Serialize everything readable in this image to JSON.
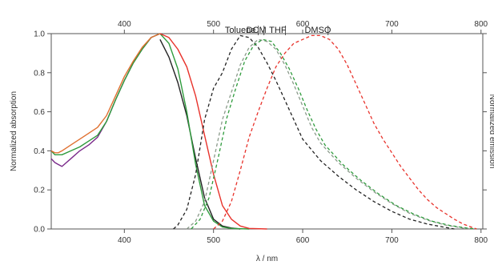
{
  "chart_data": {
    "type": "line",
    "xlabel": "λ / nm",
    "ylabel": "Normalized absorption",
    "y2label": "Normalized emission",
    "xlim": [
      318,
      802
    ],
    "ylim": [
      0,
      1.0
    ],
    "xticks": [
      "400",
      "500",
      "600",
      "700",
      "800"
    ],
    "xtick_values": [
      400,
      500,
      600,
      700,
      800
    ],
    "top_xticks": [
      "400",
      "500",
      "600",
      "700",
      "800"
    ],
    "yticks": [
      "0.0",
      "0.2",
      "0.4",
      "0.6",
      "0.8",
      "1.0"
    ],
    "ytick_values": [
      0,
      0.2,
      0.4,
      0.6,
      0.8,
      1.0
    ],
    "annotations": [
      {
        "text": "Toluene",
        "x": 530
      },
      {
        "text": "DCM",
        "x": 548
      },
      {
        "text": "THF",
        "x": 572
      },
      {
        "text": "DMSO",
        "x": 617
      }
    ],
    "colors": {
      "black": "#222222",
      "green": "#2e9b3c",
      "gray": "#8a9a8a",
      "red": "#e8322b",
      "purple": "#7a2a8a",
      "orange": "#e07030"
    },
    "series": [
      {
        "kind": "absorption",
        "color": "purple",
        "style": "solid",
        "x": [
          318,
          322,
          326,
          330,
          340,
          350,
          360,
          370,
          380,
          390,
          400,
          410,
          420,
          430,
          440
        ],
        "y": [
          0.36,
          0.34,
          0.33,
          0.32,
          0.36,
          0.4,
          0.43,
          0.47,
          0.55,
          0.66,
          0.76,
          0.85,
          0.92,
          0.98,
          1.0
        ]
      },
      {
        "kind": "absorption",
        "color": "black",
        "style": "solid",
        "x": [
          440,
          450,
          460,
          470,
          480,
          490,
          500,
          510,
          520,
          530
        ],
        "y": [
          0.97,
          0.88,
          0.75,
          0.58,
          0.36,
          0.16,
          0.05,
          0.015,
          0.005,
          0.0
        ]
      },
      {
        "kind": "absorption",
        "color": "green",
        "style": "solid",
        "x": [
          318,
          322,
          326,
          330,
          340,
          350,
          360,
          370,
          380,
          390,
          400,
          410,
          420,
          430,
          440,
          450,
          460,
          470,
          480,
          490,
          500,
          510,
          520,
          540
        ],
        "y": [
          0.4,
          0.38,
          0.38,
          0.38,
          0.4,
          0.42,
          0.45,
          0.48,
          0.55,
          0.66,
          0.76,
          0.85,
          0.92,
          0.98,
          1.0,
          0.95,
          0.82,
          0.6,
          0.33,
          0.12,
          0.04,
          0.01,
          0.003,
          0.0
        ]
      },
      {
        "kind": "absorption",
        "color": "orange",
        "style": "solid",
        "x": [
          318,
          322,
          326,
          330,
          340,
          350,
          360,
          370,
          380,
          390,
          400,
          410,
          420,
          430,
          440
        ],
        "y": [
          0.4,
          0.39,
          0.39,
          0.4,
          0.43,
          0.46,
          0.49,
          0.52,
          0.58,
          0.68,
          0.78,
          0.86,
          0.93,
          0.98,
          1.0
        ]
      },
      {
        "kind": "absorption",
        "color": "red",
        "style": "solid",
        "x": [
          440,
          450,
          460,
          470,
          480,
          490,
          500,
          510,
          520,
          530,
          540,
          560
        ],
        "y": [
          1.0,
          0.98,
          0.92,
          0.83,
          0.68,
          0.48,
          0.28,
          0.12,
          0.05,
          0.015,
          0.003,
          0.0
        ]
      },
      {
        "kind": "emission",
        "color": "black",
        "style": "dashed",
        "name": "Toluene",
        "x": [
          455,
          460,
          470,
          480,
          490,
          500,
          510,
          520,
          530,
          540,
          550,
          560,
          570,
          580,
          590,
          600,
          620,
          640,
          660,
          680,
          700,
          720,
          740,
          760,
          770
        ],
        "y": [
          0.0,
          0.02,
          0.1,
          0.28,
          0.56,
          0.72,
          0.8,
          0.92,
          0.99,
          0.98,
          0.93,
          0.85,
          0.76,
          0.66,
          0.56,
          0.46,
          0.35,
          0.27,
          0.2,
          0.14,
          0.09,
          0.05,
          0.025,
          0.008,
          0.0
        ]
      },
      {
        "kind": "emission",
        "color": "gray",
        "style": "dashed",
        "name": "DCM",
        "x": [
          470,
          480,
          490,
          500,
          510,
          520,
          530,
          540,
          550,
          560,
          570,
          580,
          590,
          600,
          610,
          620,
          640,
          660,
          680,
          700,
          720,
          740,
          760,
          780,
          790
        ],
        "y": [
          0.0,
          0.04,
          0.14,
          0.35,
          0.56,
          0.7,
          0.84,
          0.93,
          0.97,
          0.96,
          0.92,
          0.84,
          0.74,
          0.63,
          0.52,
          0.44,
          0.34,
          0.26,
          0.19,
          0.13,
          0.08,
          0.045,
          0.02,
          0.005,
          0.0
        ]
      },
      {
        "kind": "emission",
        "color": "green",
        "style": "dashed",
        "name": "THF",
        "x": [
          475,
          485,
          495,
          505,
          515,
          525,
          535,
          545,
          555,
          565,
          575,
          585,
          595,
          605,
          615,
          625,
          645,
          665,
          685,
          705,
          725,
          745,
          765,
          785,
          795
        ],
        "y": [
          0.0,
          0.05,
          0.16,
          0.36,
          0.57,
          0.72,
          0.86,
          0.94,
          0.97,
          0.96,
          0.9,
          0.82,
          0.72,
          0.61,
          0.51,
          0.43,
          0.33,
          0.25,
          0.18,
          0.12,
          0.075,
          0.04,
          0.018,
          0.004,
          0.0
        ]
      },
      {
        "kind": "emission",
        "color": "red",
        "style": "dashed",
        "name": "DMSO",
        "x": [
          500,
          510,
          520,
          530,
          540,
          550,
          560,
          570,
          580,
          590,
          600,
          610,
          620,
          630,
          640,
          650,
          660,
          670,
          680,
          690,
          700,
          710,
          720,
          730,
          740,
          750,
          760,
          770,
          780,
          790,
          795
        ],
        "y": [
          0.0,
          0.04,
          0.14,
          0.3,
          0.47,
          0.6,
          0.72,
          0.83,
          0.9,
          0.95,
          0.97,
          0.99,
          0.99,
          0.97,
          0.92,
          0.84,
          0.74,
          0.64,
          0.54,
          0.46,
          0.39,
          0.32,
          0.26,
          0.2,
          0.15,
          0.11,
          0.08,
          0.05,
          0.025,
          0.008,
          0.0
        ]
      }
    ]
  }
}
